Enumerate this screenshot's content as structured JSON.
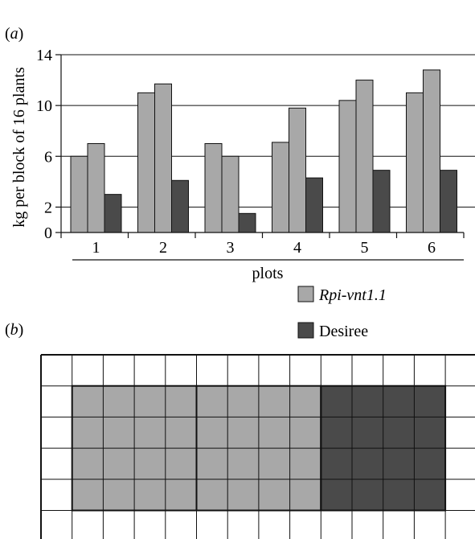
{
  "panel_a_label_open": "(",
  "panel_a_label_letter": "a",
  "panel_a_label_close": ")",
  "panel_b_label_open": "(",
  "panel_b_label_letter": "b",
  "panel_b_label_close": ")",
  "colors": {
    "rpi": "#a8a8a8",
    "desiree": "#4a4a4a",
    "line": "#111111",
    "grid": "#111111"
  },
  "chart_data": {
    "type": "bar",
    "xlabel": "plots",
    "ylabel": "kg per block of 16 plants",
    "ylim": [
      0,
      14
    ],
    "yticks": [
      "0",
      "2",
      "6",
      "10",
      "14"
    ],
    "ytick_values": [
      0,
      2,
      6,
      10,
      14
    ],
    "grid": "horizontal",
    "legend_position": "bottom-right",
    "categories": [
      "1",
      "2",
      "3",
      "4",
      "5",
      "6"
    ],
    "series": [
      {
        "name": "Rpi-vnt1.1",
        "role": "rpi",
        "values": [
          6.0,
          11.0,
          7.0,
          7.1,
          10.4,
          11.0
        ]
      },
      {
        "name": "Rpi-vnt1.1",
        "role": "rpi",
        "values": [
          7.0,
          11.7,
          6.0,
          9.8,
          12.0,
          12.8
        ]
      },
      {
        "name": "Desiree",
        "role": "desiree",
        "values": [
          3.0,
          4.1,
          1.5,
          4.3,
          4.9,
          4.9
        ]
      }
    ],
    "legend": [
      {
        "label": "Rpi-vnt1.1",
        "role": "rpi",
        "italic": true
      },
      {
        "label": "Desiree",
        "role": "desiree",
        "italic": false
      }
    ]
  },
  "field_layout": {
    "columns": 14,
    "rows": 6,
    "blocks": [
      {
        "role": "rpi",
        "col_start": 1,
        "col_end": 5,
        "row_start": 1,
        "row_end": 5
      },
      {
        "role": "rpi",
        "col_start": 5,
        "col_end": 9,
        "row_start": 1,
        "row_end": 5
      },
      {
        "role": "desiree",
        "col_start": 9,
        "col_end": 13,
        "row_start": 1,
        "row_end": 5
      }
    ]
  }
}
